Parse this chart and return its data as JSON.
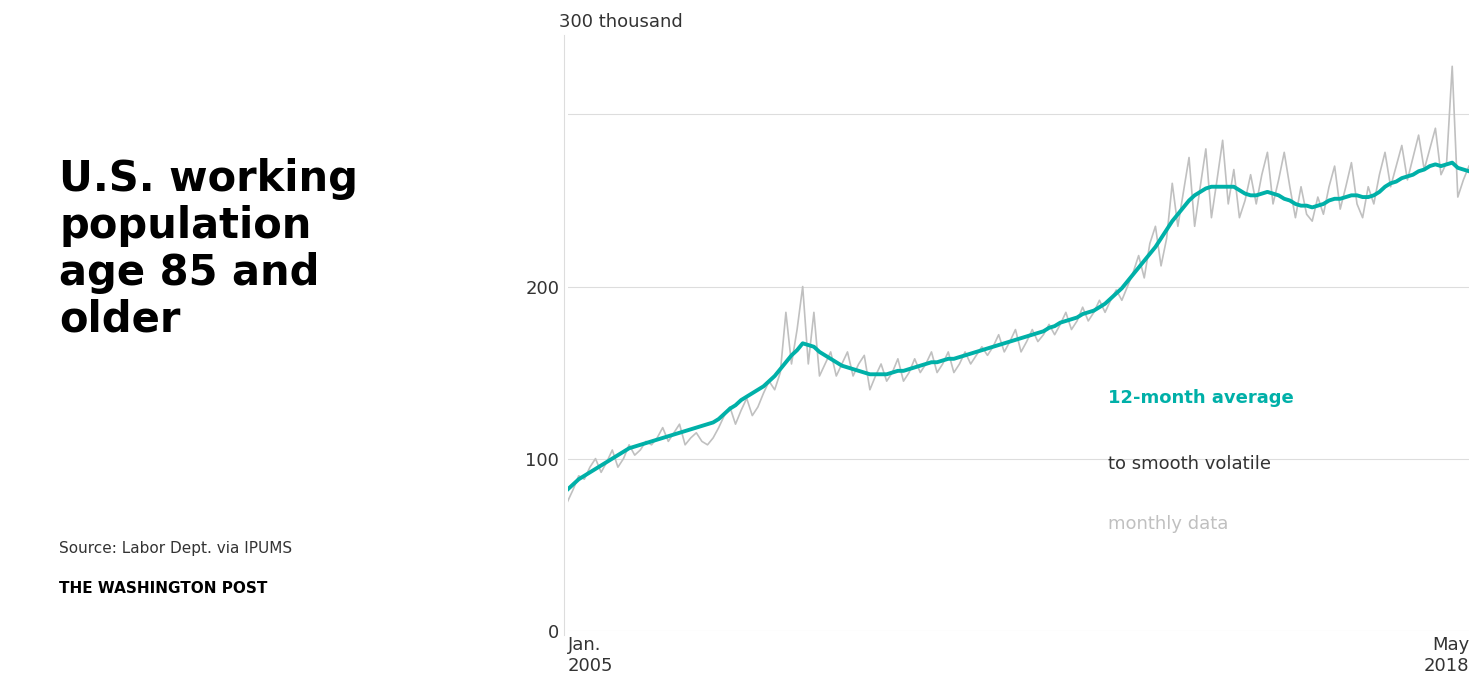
{
  "title_line1": "U.S. working",
  "title_line2": "population",
  "title_line3": "age 85 and",
  "title_line4": "older",
  "source_line1": "Source: Labor Dept. via IPUMS",
  "source_line2": "THE WASHINGTON POST",
  "ylabel_text": "300 thousand",
  "x_start_label": "Jan.\n2005",
  "x_end_label": "May\n2018",
  "y_ticks": [
    0,
    100,
    200,
    300
  ],
  "ylim": [
    0,
    335
  ],
  "teal_color": "#00B0A8",
  "gray_color": "#C0C0C0",
  "background_color": "#FFFFFF",
  "annotation_bold": "12-month average",
  "annotation_normal": "to smooth volatile",
  "annotation_gray": "monthly data",
  "monthly_data": [
    75,
    82,
    90,
    88,
    95,
    100,
    92,
    98,
    105,
    95,
    100,
    108,
    102,
    105,
    110,
    108,
    112,
    118,
    110,
    115,
    120,
    108,
    112,
    115,
    110,
    108,
    112,
    118,
    125,
    130,
    120,
    128,
    135,
    125,
    130,
    138,
    145,
    140,
    150,
    185,
    155,
    175,
    200,
    155,
    185,
    148,
    155,
    162,
    148,
    155,
    162,
    148,
    155,
    160,
    140,
    148,
    155,
    145,
    150,
    158,
    145,
    150,
    158,
    150,
    155,
    162,
    150,
    155,
    162,
    150,
    155,
    162,
    155,
    160,
    165,
    160,
    165,
    172,
    162,
    168,
    175,
    162,
    168,
    175,
    168,
    172,
    178,
    172,
    178,
    185,
    175,
    180,
    188,
    180,
    185,
    192,
    185,
    192,
    198,
    192,
    200,
    208,
    218,
    205,
    225,
    235,
    212,
    228,
    260,
    235,
    255,
    275,
    235,
    258,
    280,
    240,
    262,
    285,
    248,
    268,
    240,
    250,
    265,
    248,
    265,
    278,
    248,
    262,
    278,
    258,
    240,
    258,
    242,
    238,
    252,
    242,
    258,
    270,
    245,
    258,
    272,
    248,
    240,
    258,
    248,
    265,
    278,
    258,
    270,
    282,
    262,
    275,
    288,
    268,
    280,
    292,
    265,
    272,
    328,
    252,
    262,
    270
  ],
  "smooth_data": [
    82,
    85,
    88,
    90,
    92,
    94,
    96,
    98,
    100,
    102,
    104,
    106,
    107,
    108,
    109,
    110,
    111,
    112,
    113,
    114,
    115,
    116,
    117,
    118,
    119,
    120,
    121,
    123,
    126,
    129,
    131,
    134,
    136,
    138,
    140,
    142,
    145,
    148,
    152,
    156,
    160,
    163,
    167,
    166,
    165,
    162,
    160,
    158,
    156,
    154,
    153,
    152,
    151,
    150,
    149,
    149,
    149,
    149,
    150,
    151,
    151,
    152,
    153,
    154,
    155,
    156,
    156,
    157,
    158,
    158,
    159,
    160,
    161,
    162,
    163,
    164,
    165,
    166,
    167,
    168,
    169,
    170,
    171,
    172,
    173,
    174,
    176,
    177,
    179,
    180,
    181,
    182,
    184,
    185,
    186,
    188,
    190,
    193,
    196,
    199,
    203,
    207,
    211,
    215,
    219,
    223,
    228,
    233,
    238,
    242,
    246,
    250,
    253,
    255,
    257,
    258,
    258,
    258,
    258,
    258,
    256,
    254,
    253,
    253,
    254,
    255,
    254,
    253,
    251,
    250,
    248,
    247,
    247,
    246,
    247,
    248,
    250,
    251,
    251,
    252,
    253,
    253,
    252,
    252,
    253,
    255,
    258,
    260,
    261,
    263,
    264,
    265,
    267,
    268,
    270,
    271,
    270,
    271,
    272,
    269,
    268,
    267
  ]
}
